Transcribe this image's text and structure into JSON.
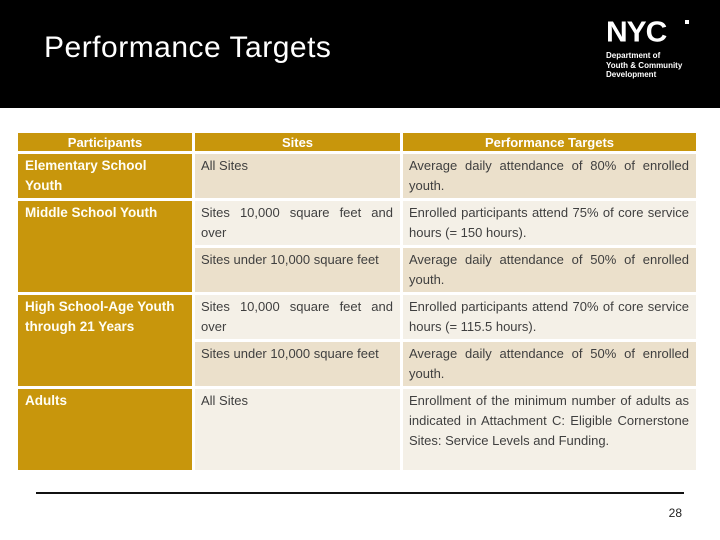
{
  "slide": {
    "title": "Performance Targets",
    "page_number": "28"
  },
  "logo": {
    "brand": "NYC",
    "lines": [
      "Department of",
      "Youth & Community",
      "Development"
    ]
  },
  "table": {
    "headers": [
      "Participants",
      "Sites",
      "Performance Targets"
    ],
    "groups": [
      {
        "participant": "Elementary School Youth",
        "entries": [
          {
            "site": "All Sites",
            "target": "Average daily attendance of 80% of enrolled youth."
          }
        ]
      },
      {
        "participant": "Middle School Youth",
        "entries": [
          {
            "site": "Sites 10,000  square feet and over",
            "target": "Enrolled participants attend 75% of core service hours (= 150 hours)."
          },
          {
            "site": "Sites under 10,000 square feet",
            "target": "Average daily attendance of 50% of enrolled youth."
          }
        ]
      },
      {
        "participant": "High School-Age Youth through 21 Years",
        "entries": [
          {
            "site": "Sites 10,000  square feet and over",
            "target": "Enrolled participants attend 70% of core service hours (= 115.5 hours)."
          },
          {
            "site": "Sites under 10,000 square feet",
            "target": "Average daily attendance of 50% of enrolled youth."
          }
        ]
      },
      {
        "participant": "Adults",
        "entries": [
          {
            "site": "All Sites",
            "target": "Enrollment of the minimum number of adults as indicated in Attachment C:  Eligible Cornerstone Sites: Service Levels and Funding."
          }
        ]
      }
    ]
  },
  "colors": {
    "accent_gold": "#c8960c",
    "band_dark": "#ebe0cb",
    "band_light": "#f4f0e7",
    "banner": "#000000",
    "cell_text": "#3f3f3f"
  }
}
